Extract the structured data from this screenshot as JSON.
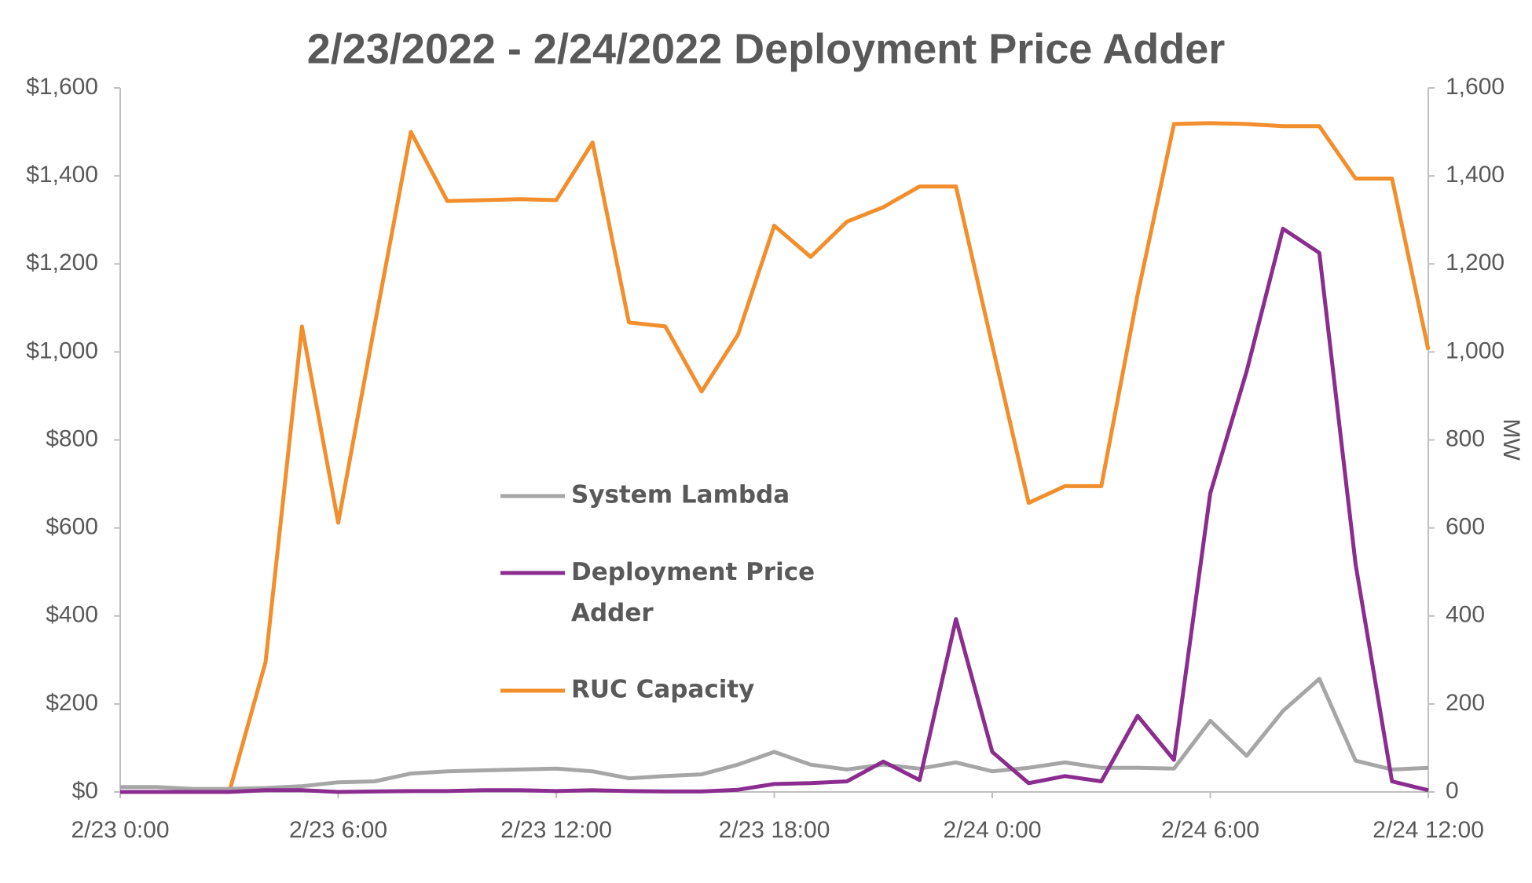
{
  "chart_data": {
    "type": "line",
    "title": "2/23/2022 - 2/24/2022 Deployment Price Adder",
    "y2label": "MW",
    "categories": [
      "2/23 0:00",
      null,
      null,
      null,
      null,
      null,
      "2/23 6:00",
      null,
      null,
      null,
      null,
      null,
      "2/23 12:00",
      null,
      null,
      null,
      null,
      null,
      "2/23 18:00",
      null,
      null,
      null,
      null,
      null,
      "2/24 0:00",
      null,
      null,
      null,
      null,
      null,
      "2/24 6:00",
      null,
      null,
      null,
      null,
      null,
      "2/24 12:00"
    ],
    "series": [
      {
        "name": "System Lambda",
        "color": "#a6a6a6",
        "values": [
          11,
          11,
          7,
          7,
          9,
          13,
          22,
          24,
          42,
          47,
          49,
          51,
          53,
          47,
          31,
          36,
          40,
          62,
          91,
          62,
          51,
          62,
          53,
          67,
          47,
          55,
          67,
          55,
          55,
          53,
          162,
          82,
          184,
          257,
          71,
          51,
          55
        ]
      },
      {
        "name": "Deployment Price Adder",
        "color": "#8b2c8f",
        "values": [
          0,
          0,
          0,
          0,
          4,
          4,
          0,
          1,
          2,
          2,
          4,
          4,
          2,
          4,
          2,
          1,
          1,
          5,
          18,
          20,
          24,
          69,
          27,
          393,
          91,
          20,
          36,
          24,
          173,
          73,
          679,
          956,
          1280,
          1225,
          517,
          24,
          4
        ]
      },
      {
        "name": "RUC Capacity",
        "color": "#f28e2b",
        "axis": "y2",
        "values": [
          0,
          0,
          0,
          0,
          295,
          1058,
          612,
          1060,
          1500,
          1343,
          1345,
          1347,
          1345,
          1476,
          1067,
          1058,
          910,
          1039,
          1287,
          1216,
          1296,
          1329,
          1376,
          1376,
          1015,
          657,
          695,
          695,
          1130,
          1518,
          1520,
          1518,
          1513,
          1513,
          1394,
          1394,
          1005
        ]
      }
    ],
    "ylim": [
      0,
      1600
    ],
    "yticks": [
      {
        "value": 0,
        "label": "$0"
      },
      {
        "value": 200,
        "label": "$200"
      },
      {
        "value": 400,
        "label": "$400"
      },
      {
        "value": 600,
        "label": "$600"
      },
      {
        "value": 800,
        "label": "$800"
      },
      {
        "value": 1000,
        "label": "$1,000"
      },
      {
        "value": 1200,
        "label": "$1,200"
      },
      {
        "value": 1400,
        "label": "$1,400"
      },
      {
        "value": 1600,
        "label": "$1,600"
      }
    ],
    "y2lim": [
      0,
      1600
    ],
    "y2ticks": [
      0,
      200,
      400,
      600,
      800,
      {
        "value": 1000,
        "label": "1,000"
      },
      {
        "value": 1200,
        "label": "1,200"
      },
      {
        "value": 1400,
        "label": "1,400"
      },
      {
        "value": 1600,
        "label": "1,600"
      }
    ],
    "grid": false,
    "legend": "center"
  }
}
